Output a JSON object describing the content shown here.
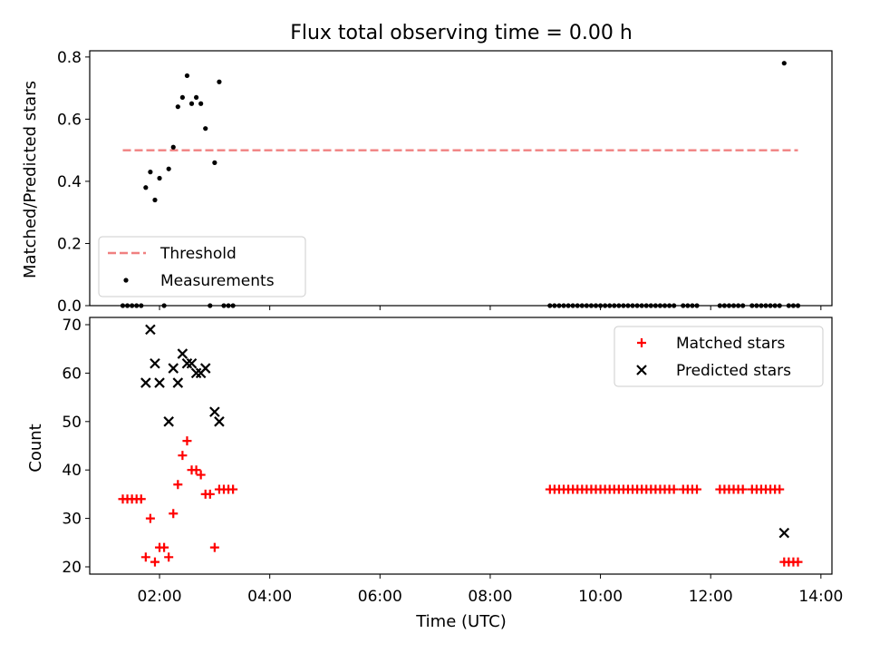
{
  "chart_data": {
    "title": "Flux total observing time = 0.00 h",
    "x_axis": {
      "label": "Time (UTC)",
      "unit": "hours UTC",
      "range": [
        "00:44",
        "14:12"
      ],
      "ticks": [
        "02:00",
        "04:00",
        "06:00",
        "08:00",
        "10:00",
        "12:00",
        "14:00"
      ],
      "shared": true
    },
    "panels": [
      {
        "type": "scatter",
        "ylabel": "Matched/Predicted stars",
        "ylim": [
          0.0,
          0.82
        ],
        "yticks": [
          "0.0",
          "0.2",
          "0.4",
          "0.6",
          "0.8"
        ],
        "legend_position": "lower-left",
        "series": [
          {
            "name": "Threshold",
            "type": "line",
            "style": "dashed",
            "color": "#f08080",
            "points": [
              [
                "01:20",
                0.5
              ],
              [
                "13:35",
                0.5
              ]
            ]
          },
          {
            "name": "Measurements",
            "type": "scatter",
            "marker": "dot",
            "color": "#000000",
            "points": [
              [
                "01:20",
                0.0
              ],
              [
                "01:25",
                0.0
              ],
              [
                "01:30",
                0.0
              ],
              [
                "01:35",
                0.0
              ],
              [
                "01:40",
                0.0
              ],
              [
                "01:45",
                0.38
              ],
              [
                "01:50",
                0.43
              ],
              [
                "01:55",
                0.34
              ],
              [
                "02:00",
                0.41
              ],
              [
                "02:05",
                0.0
              ],
              [
                "02:10",
                0.44
              ],
              [
                "02:15",
                0.51
              ],
              [
                "02:20",
                0.64
              ],
              [
                "02:25",
                0.67
              ],
              [
                "02:30",
                0.74
              ],
              [
                "02:35",
                0.65
              ],
              [
                "02:40",
                0.67
              ],
              [
                "02:45",
                0.65
              ],
              [
                "02:50",
                0.57
              ],
              [
                "02:55",
                0.0
              ],
              [
                "03:00",
                0.46
              ],
              [
                "03:05",
                0.72
              ],
              [
                "03:10",
                0.0
              ],
              [
                "03:15",
                0.0
              ],
              [
                "03:20",
                0.0
              ],
              [
                "09:05",
                0.0
              ],
              [
                "09:10",
                0.0
              ],
              [
                "09:15",
                0.0
              ],
              [
                "09:20",
                0.0
              ],
              [
                "09:25",
                0.0
              ],
              [
                "09:30",
                0.0
              ],
              [
                "09:35",
                0.0
              ],
              [
                "09:40",
                0.0
              ],
              [
                "09:45",
                0.0
              ],
              [
                "09:50",
                0.0
              ],
              [
                "09:55",
                0.0
              ],
              [
                "10:00",
                0.0
              ],
              [
                "10:05",
                0.0
              ],
              [
                "10:10",
                0.0
              ],
              [
                "10:15",
                0.0
              ],
              [
                "10:20",
                0.0
              ],
              [
                "10:25",
                0.0
              ],
              [
                "10:30",
                0.0
              ],
              [
                "10:35",
                0.0
              ],
              [
                "10:40",
                0.0
              ],
              [
                "10:45",
                0.0
              ],
              [
                "10:50",
                0.0
              ],
              [
                "10:55",
                0.0
              ],
              [
                "11:00",
                0.0
              ],
              [
                "11:05",
                0.0
              ],
              [
                "11:10",
                0.0
              ],
              [
                "11:15",
                0.0
              ],
              [
                "11:20",
                0.0
              ],
              [
                "11:30",
                0.0
              ],
              [
                "11:35",
                0.0
              ],
              [
                "11:40",
                0.0
              ],
              [
                "11:45",
                0.0
              ],
              [
                "12:10",
                0.0
              ],
              [
                "12:15",
                0.0
              ],
              [
                "12:20",
                0.0
              ],
              [
                "12:25",
                0.0
              ],
              [
                "12:30",
                0.0
              ],
              [
                "12:35",
                0.0
              ],
              [
                "12:45",
                0.0
              ],
              [
                "12:50",
                0.0
              ],
              [
                "12:55",
                0.0
              ],
              [
                "13:00",
                0.0
              ],
              [
                "13:05",
                0.0
              ],
              [
                "13:10",
                0.0
              ],
              [
                "13:15",
                0.0
              ],
              [
                "13:20",
                0.78
              ],
              [
                "13:25",
                0.0
              ],
              [
                "13:30",
                0.0
              ],
              [
                "13:35",
                0.0
              ]
            ]
          }
        ]
      },
      {
        "type": "scatter",
        "ylabel": "Count",
        "ylim": [
          18.5,
          71.5
        ],
        "yticks": [
          "20",
          "30",
          "40",
          "50",
          "60",
          "70"
        ],
        "legend_position": "upper-right",
        "series": [
          {
            "name": "Matched stars",
            "type": "scatter",
            "marker": "plus",
            "color": "#ff0000",
            "points": [
              [
                "01:20",
                34
              ],
              [
                "01:25",
                34
              ],
              [
                "01:30",
                34
              ],
              [
                "01:35",
                34
              ],
              [
                "01:40",
                34
              ],
              [
                "01:45",
                22
              ],
              [
                "01:50",
                30
              ],
              [
                "01:55",
                21
              ],
              [
                "02:00",
                24
              ],
              [
                "02:05",
                24
              ],
              [
                "02:10",
                22
              ],
              [
                "02:15",
                31
              ],
              [
                "02:20",
                37
              ],
              [
                "02:25",
                43
              ],
              [
                "02:30",
                46
              ],
              [
                "02:35",
                40
              ],
              [
                "02:40",
                40
              ],
              [
                "02:45",
                39
              ],
              [
                "02:50",
                35
              ],
              [
                "02:55",
                35
              ],
              [
                "03:00",
                24
              ],
              [
                "03:05",
                36
              ],
              [
                "03:10",
                36
              ],
              [
                "03:15",
                36
              ],
              [
                "03:20",
                36
              ],
              [
                "09:05",
                36
              ],
              [
                "09:10",
                36
              ],
              [
                "09:15",
                36
              ],
              [
                "09:20",
                36
              ],
              [
                "09:25",
                36
              ],
              [
                "09:30",
                36
              ],
              [
                "09:35",
                36
              ],
              [
                "09:40",
                36
              ],
              [
                "09:45",
                36
              ],
              [
                "09:50",
                36
              ],
              [
                "09:55",
                36
              ],
              [
                "10:00",
                36
              ],
              [
                "10:05",
                36
              ],
              [
                "10:10",
                36
              ],
              [
                "10:15",
                36
              ],
              [
                "10:20",
                36
              ],
              [
                "10:25",
                36
              ],
              [
                "10:30",
                36
              ],
              [
                "10:35",
                36
              ],
              [
                "10:40",
                36
              ],
              [
                "10:45",
                36
              ],
              [
                "10:50",
                36
              ],
              [
                "10:55",
                36
              ],
              [
                "11:00",
                36
              ],
              [
                "11:05",
                36
              ],
              [
                "11:10",
                36
              ],
              [
                "11:15",
                36
              ],
              [
                "11:20",
                36
              ],
              [
                "11:30",
                36
              ],
              [
                "11:35",
                36
              ],
              [
                "11:40",
                36
              ],
              [
                "11:45",
                36
              ],
              [
                "12:10",
                36
              ],
              [
                "12:15",
                36
              ],
              [
                "12:20",
                36
              ],
              [
                "12:25",
                36
              ],
              [
                "12:30",
                36
              ],
              [
                "12:35",
                36
              ],
              [
                "12:45",
                36
              ],
              [
                "12:50",
                36
              ],
              [
                "12:55",
                36
              ],
              [
                "13:00",
                36
              ],
              [
                "13:05",
                36
              ],
              [
                "13:10",
                36
              ],
              [
                "13:15",
                36
              ],
              [
                "13:20",
                21
              ],
              [
                "13:25",
                21
              ],
              [
                "13:30",
                21
              ],
              [
                "13:35",
                21
              ]
            ]
          },
          {
            "name": "Predicted stars",
            "type": "scatter",
            "marker": "x",
            "color": "#000000",
            "points": [
              [
                "01:45",
                58
              ],
              [
                "01:50",
                69
              ],
              [
                "01:55",
                62
              ],
              [
                "02:00",
                58
              ],
              [
                "02:10",
                50
              ],
              [
                "02:15",
                61
              ],
              [
                "02:20",
                58
              ],
              [
                "02:25",
                64
              ],
              [
                "02:30",
                62
              ],
              [
                "02:35",
                62
              ],
              [
                "02:40",
                60
              ],
              [
                "02:45",
                60
              ],
              [
                "02:50",
                61
              ],
              [
                "03:00",
                52
              ],
              [
                "03:05",
                50
              ],
              [
                "13:20",
                27
              ]
            ]
          }
        ]
      }
    ]
  }
}
